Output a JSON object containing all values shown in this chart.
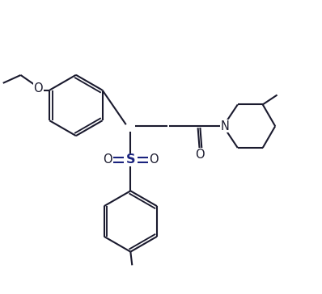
{
  "bg_color": "#ffffff",
  "line_color": "#1a1a2e",
  "line_width": 1.5,
  "so2_color": "#1a237e",
  "atom_bg": "#ffffff",
  "font_size": 10.5,
  "fig_width": 3.98,
  "fig_height": 3.64,
  "dpi": 100,
  "xlim": [
    0,
    10
  ],
  "ylim": [
    0,
    9.1
  ]
}
